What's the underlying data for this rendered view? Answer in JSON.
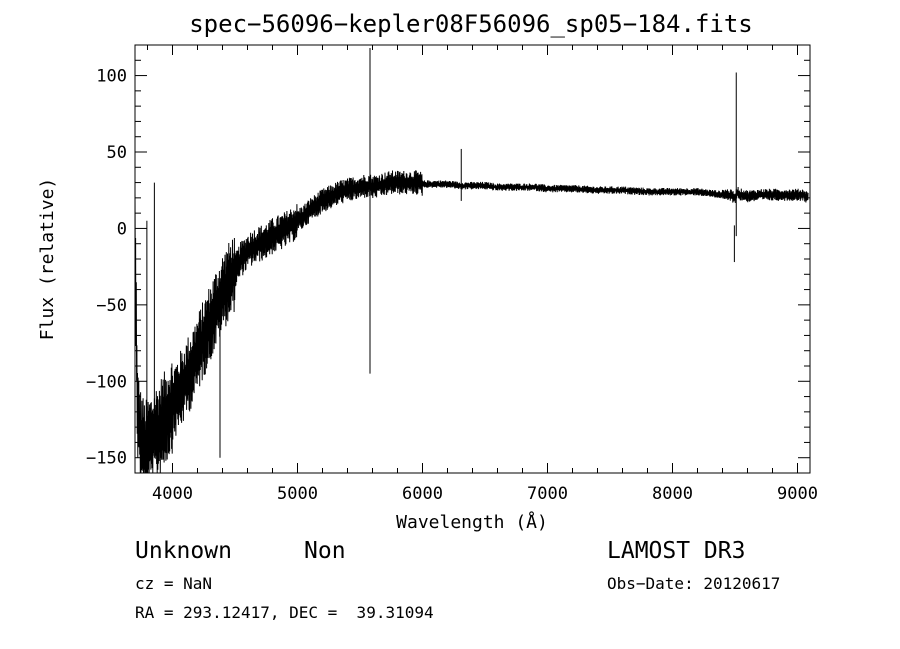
{
  "chart_data": {
    "type": "line",
    "title": "spec−56096−kepler08F56096_sp05−184.fits",
    "xlabel": "Wavelength (Å)",
    "ylabel": "Flux (relative)",
    "xlim": [
      3700,
      9100
    ],
    "ylim": [
      -160,
      120
    ],
    "xticks": [
      4000,
      5000,
      6000,
      7000,
      8000,
      9000
    ],
    "yticks": [
      -150,
      -100,
      -50,
      0,
      50,
      100
    ],
    "xtick_labels": [
      "4000",
      "5000",
      "6000",
      "7000",
      "8000",
      "9000"
    ],
    "ytick_labels": [
      "−150",
      "−100",
      "−50",
      "0",
      "50",
      "100"
    ],
    "grid": false,
    "series": [
      {
        "x": [
          3700,
          3720,
          3740,
          3760,
          3780,
          3800,
          3820,
          3840,
          3860,
          3880,
          3900,
          3920,
          3940,
          3960,
          3980,
          4000,
          4050,
          4100,
          4150,
          4200,
          4250,
          4300,
          4350,
          4400,
          4450,
          4500,
          4550,
          4600,
          4650,
          4700,
          4750,
          4800,
          4850,
          4900,
          4950,
          5000,
          5050,
          5100,
          5150,
          5200,
          5250,
          5300,
          5350,
          5400,
          5450,
          5500,
          5550,
          5580,
          5600,
          5650,
          5700,
          5750,
          5800,
          5850,
          5900,
          5950,
          6000,
          6100,
          6200,
          6300,
          6400,
          6500,
          6600,
          6700,
          6800,
          6900,
          7000,
          7200,
          7400,
          7600,
          7800,
          8000,
          8200,
          8400,
          8450,
          8480,
          8500,
          8520,
          8540,
          8560,
          8600,
          8700,
          8800,
          8900,
          9000,
          9050,
          9080
        ],
        "y": [
          0,
          -120,
          -135,
          -140,
          -145,
          -142,
          -140,
          -138,
          -135,
          -133,
          -130,
          -127,
          -125,
          -120,
          -118,
          -115,
          -108,
          -100,
          -92,
          -82,
          -72,
          -62,
          -52,
          -42,
          -35,
          -28,
          -20,
          -15,
          -12,
          -10,
          -8,
          -5,
          -3,
          -1,
          2,
          5,
          8,
          12,
          15,
          18,
          20,
          22,
          24,
          25,
          26,
          27,
          28,
          28,
          27,
          28,
          29,
          30,
          30,
          30,
          30,
          30,
          29,
          29,
          29,
          28,
          28,
          28,
          27,
          27,
          27,
          27,
          26,
          26,
          25,
          25,
          24,
          24,
          24,
          22,
          22,
          21,
          20,
          24,
          22,
          22,
          21,
          22,
          22,
          22,
          22,
          22,
          20
        ]
      }
    ],
    "spikes": [
      {
        "x": 3795,
        "min": -160,
        "max": 5
      },
      {
        "x": 3855,
        "min": -150,
        "max": 30
      },
      {
        "x": 4380,
        "min": -150,
        "max": -55
      },
      {
        "x": 5580,
        "min": -95,
        "max": 118
      },
      {
        "x": 6310,
        "min": 18,
        "max": 52
      },
      {
        "x": 8495,
        "min": -22,
        "max": 2
      },
      {
        "x": 8510,
        "min": -5,
        "max": 102
      }
    ]
  },
  "info": {
    "class_label": "Unknown",
    "subclass_label": "Non",
    "survey_label": "LAMOST DR3",
    "cz_text": "cz = NaN",
    "obs_date_text": "Obs−Date: 20120617",
    "coords_text": "RA = 293.12417, DEC =  39.31094"
  }
}
